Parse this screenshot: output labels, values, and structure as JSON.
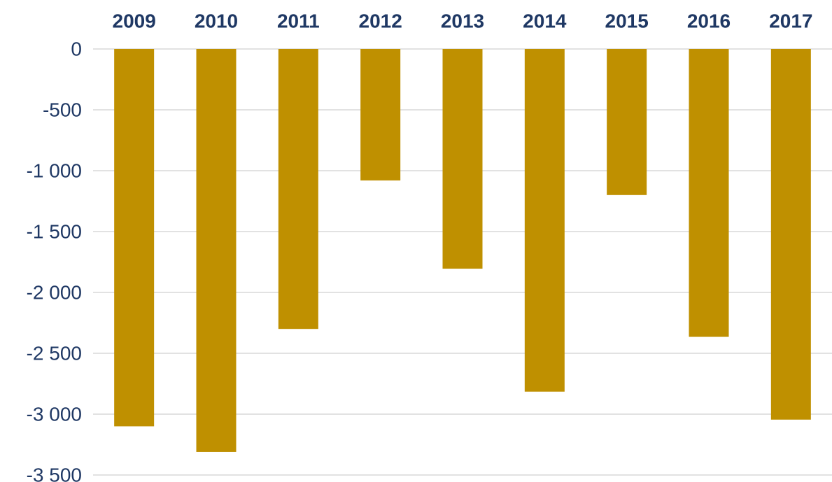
{
  "colors": {
    "bar": "#BF9000",
    "category_text": "#1F3864",
    "tick_text": "#1F3864",
    "grid": "#D9D9D9"
  },
  "chart_data": {
    "type": "bar",
    "categories": [
      "2009",
      "2010",
      "2011",
      "2012",
      "2013",
      "2014",
      "2015",
      "2016",
      "2017"
    ],
    "values": [
      -3100,
      -3310,
      -2300,
      -1080,
      -1805,
      -2815,
      -1200,
      -2365,
      -3045
    ],
    "ylim": [
      -3500,
      0
    ],
    "yticks": [
      0,
      -500,
      -1000,
      -1500,
      -2000,
      -2500,
      -3000,
      -3500
    ],
    "ytick_labels": [
      "0",
      "-500",
      "-1 000",
      "-1 500",
      "-2 000",
      "-2 500",
      "-3 000",
      "-3 500"
    ],
    "grid": true,
    "category_axis_position": "top",
    "legend": "none"
  }
}
